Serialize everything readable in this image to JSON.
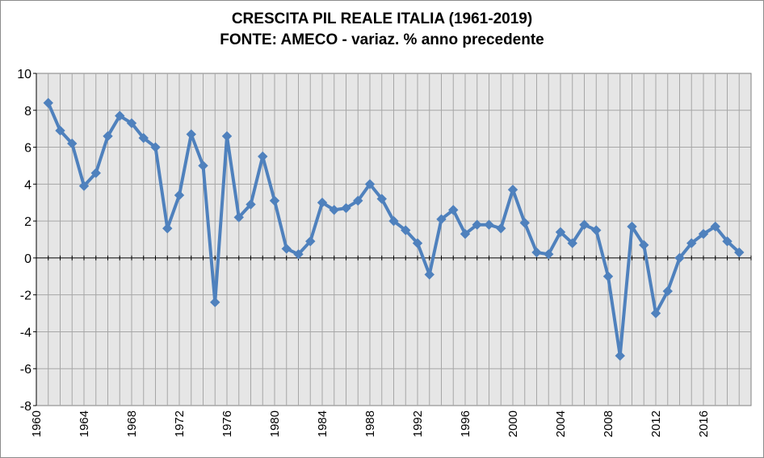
{
  "chart_data": {
    "type": "line",
    "title": "CRESCITA PIL REALE ITALIA (1961-2019)",
    "subtitle": "FONTE: AMECO - variaz. % anno precedente",
    "xlabel": "",
    "ylabel": "",
    "xlim": [
      1960,
      2020
    ],
    "ylim": [
      -8,
      10
    ],
    "y_ticks": [
      -8,
      -6,
      -4,
      -2,
      0,
      2,
      4,
      6,
      8,
      10
    ],
    "x_ticks": [
      1960,
      1964,
      1968,
      1972,
      1976,
      1980,
      1984,
      1988,
      1992,
      1996,
      2000,
      2004,
      2008,
      2012,
      2016
    ],
    "grid": true,
    "legend": "none",
    "line_color": "#4f81bd",
    "plot_background": "#e6e6e6",
    "grid_color": "#a6a6a6",
    "series": [
      {
        "x": [
          1961,
          1962,
          1963,
          1964,
          1965,
          1966,
          1967,
          1968,
          1969,
          1970,
          1971,
          1972,
          1973,
          1974,
          1975,
          1976,
          1977,
          1978,
          1979,
          1980,
          1981,
          1982,
          1983,
          1984,
          1985,
          1986,
          1987,
          1988,
          1989,
          1990,
          1991,
          1992,
          1993,
          1994,
          1995,
          1996,
          1997,
          1998,
          1999,
          2000,
          2001,
          2002,
          2003,
          2004,
          2005,
          2006,
          2007,
          2008,
          2009,
          2010,
          2011,
          2012,
          2013,
          2014,
          2015,
          2016,
          2017,
          2018,
          2019
        ],
        "values": [
          8.4,
          6.9,
          6.2,
          3.9,
          4.6,
          6.6,
          7.7,
          7.3,
          6.5,
          6.0,
          1.6,
          3.4,
          6.7,
          5.0,
          -2.4,
          6.6,
          2.2,
          2.9,
          5.5,
          3.1,
          0.5,
          0.2,
          0.9,
          3.0,
          2.6,
          2.7,
          3.1,
          4.0,
          3.2,
          2.0,
          1.5,
          0.8,
          -0.9,
          2.1,
          2.6,
          1.3,
          1.8,
          1.8,
          1.6,
          3.7,
          1.9,
          0.3,
          0.2,
          1.4,
          0.8,
          1.8,
          1.5,
          -1.0,
          -5.3,
          1.7,
          0.7,
          -3.0,
          -1.8,
          0.0,
          0.8,
          1.3,
          1.7,
          0.9,
          0.3
        ]
      }
    ]
  }
}
